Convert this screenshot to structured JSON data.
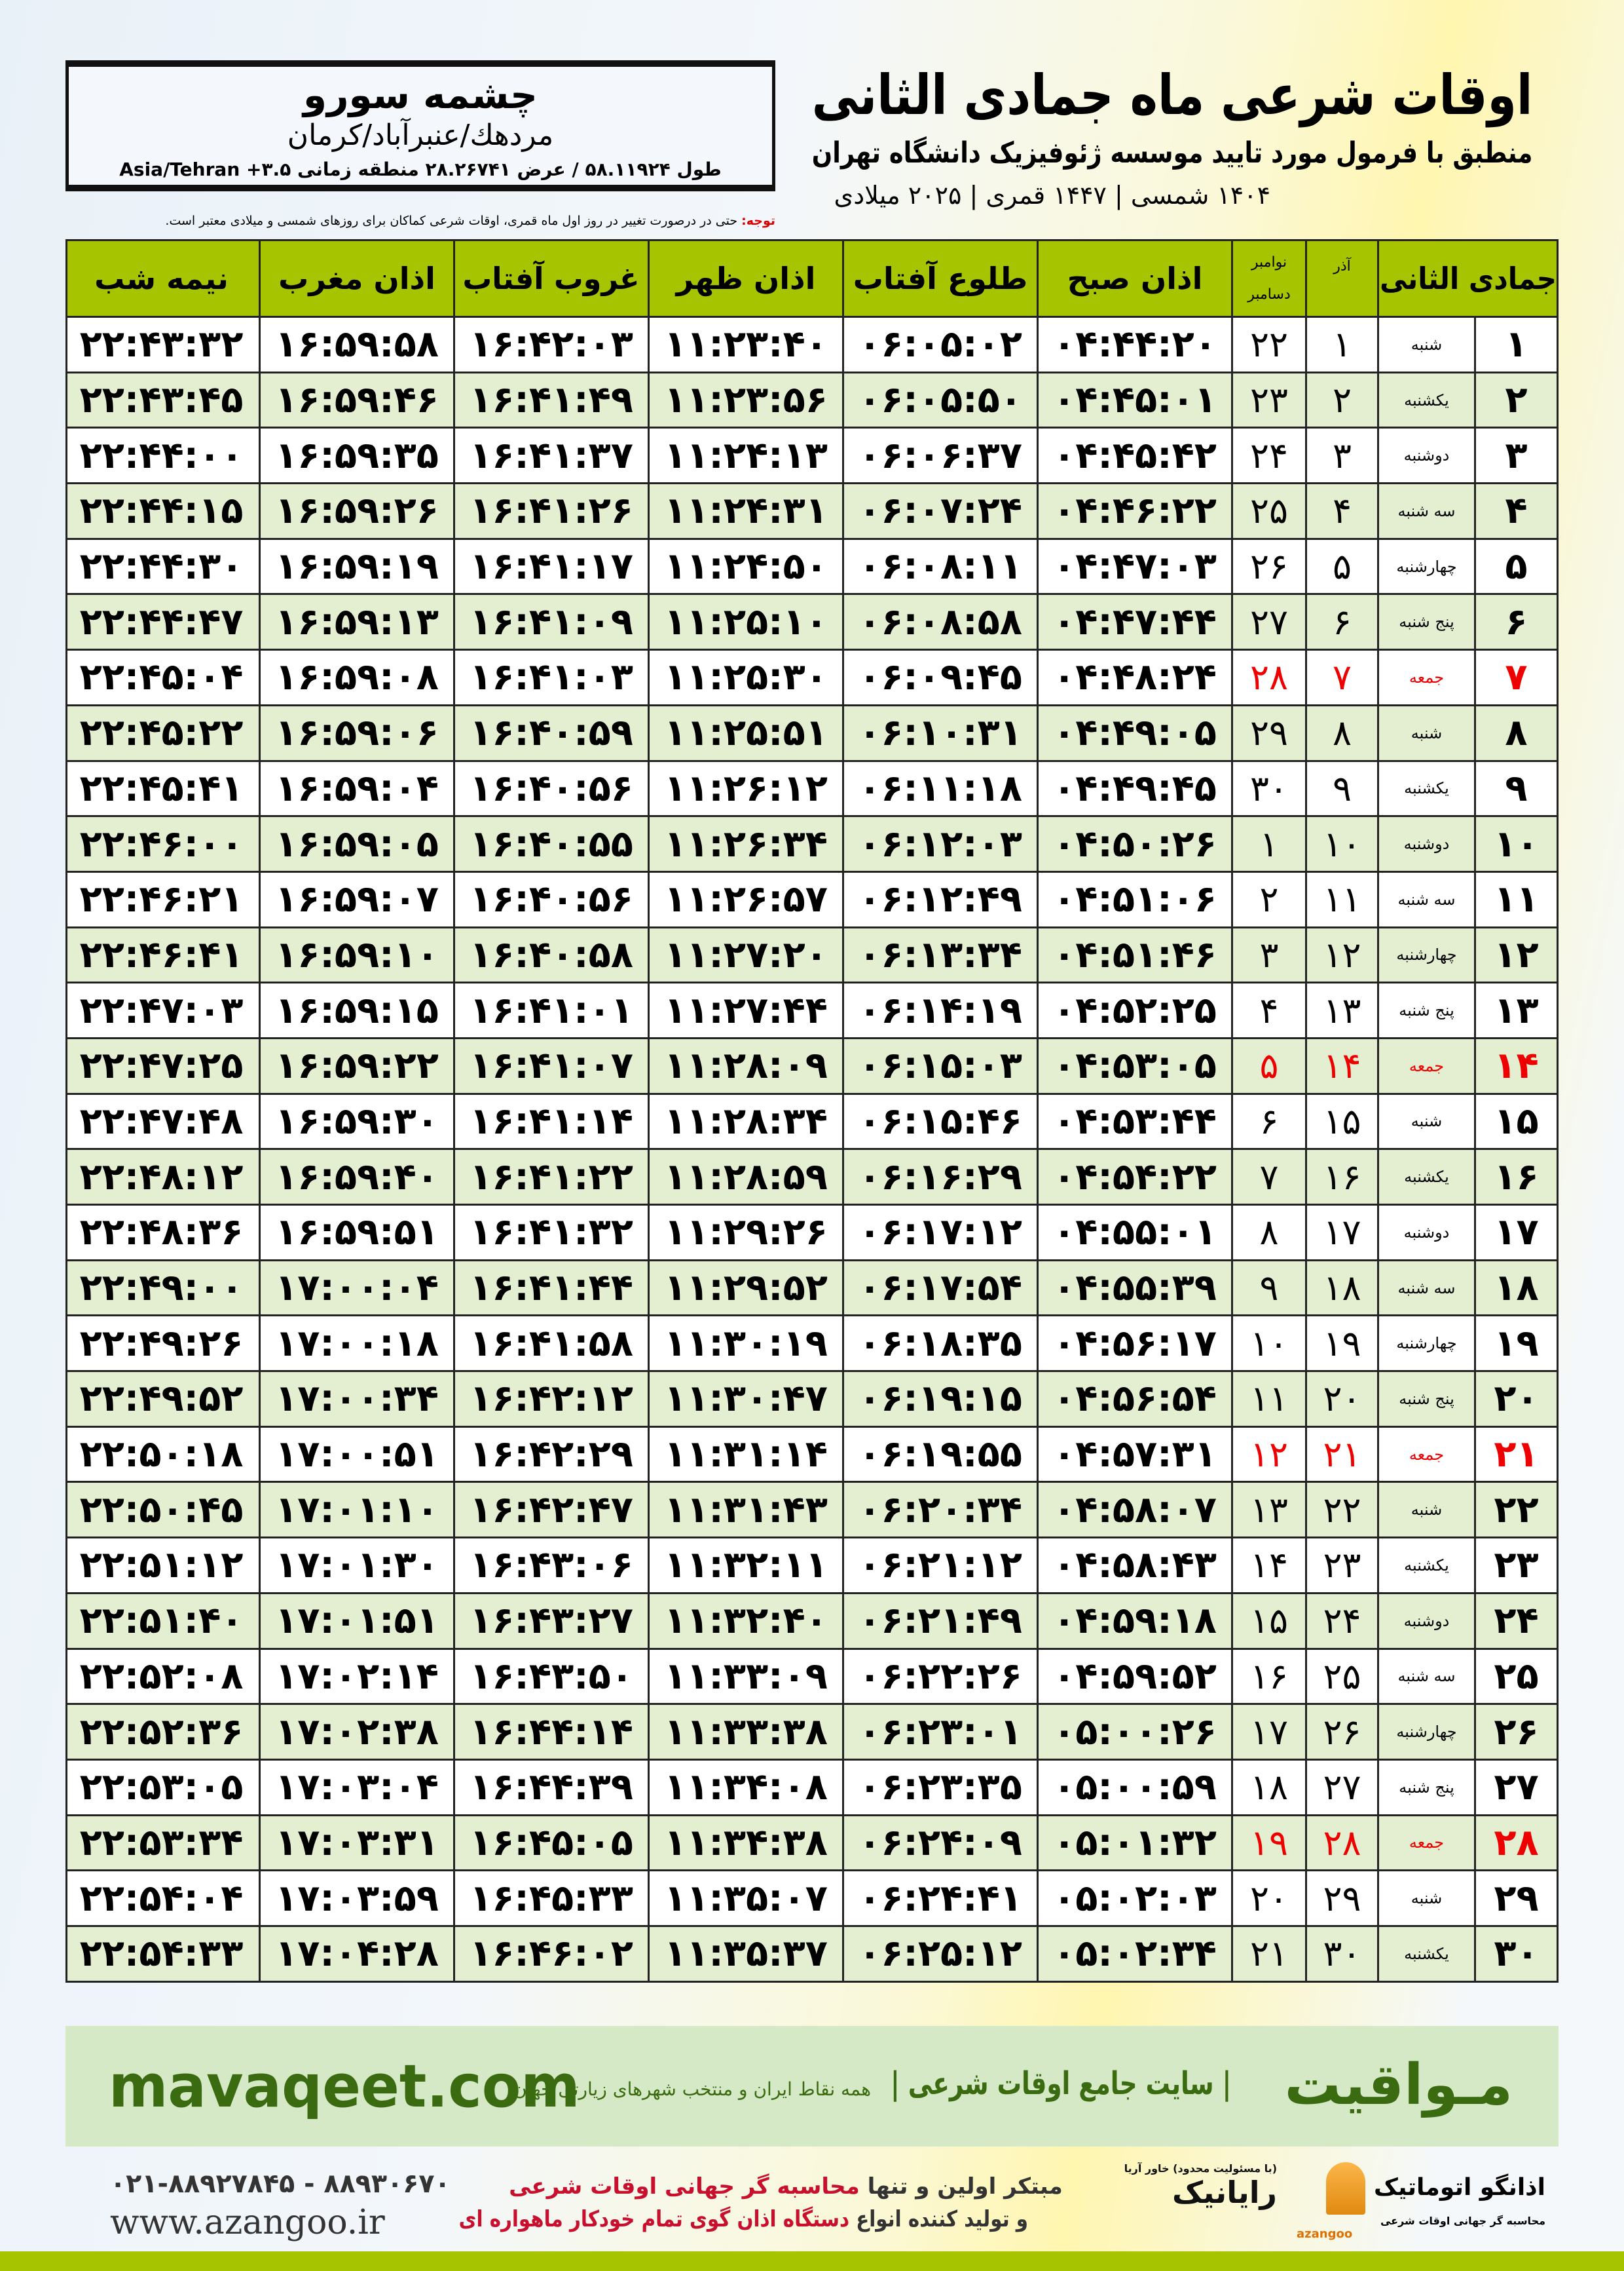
{
  "header": {
    "title": "اوقات شرعی ماه جمادی الثانی",
    "subtitle": "منطبق با فرمول مورد تایید موسسه ژئوفیزیک دانشگاه تهران",
    "years": "۱۴۰۴ شمسی | ۱۴۴۷ قمری | ۲۰۲۵ میلادی"
  },
  "location": {
    "city": "چشمه سورو",
    "path": "مردهك/عنبرآباد/کرمان",
    "coords": "طول ۵۸.۱۱۹۲۴ / عرض ۲۸.۲۶۷۴۱ منطقه زمانی ۳.۵+ Asia/Tehran"
  },
  "note": {
    "label": "توجه:",
    "text": " حتی در درصورت تغییر در روز اول ماه قمری، اوقات شرعی کماکان برای روزهای شمسی و میلادی معتبر است."
  },
  "columns": {
    "jumada": "جمادی الثانی",
    "azar": "آذر",
    "nov": "نوامبر",
    "dec": "دسامبر",
    "fajr": "اذان صبح",
    "sunrise": "طلوع آفتاب",
    "dhuhr": "اذان ظهر",
    "sunset": "غروب آفتاب",
    "maghrib": "اذان مغرب",
    "midnight": "نیمه شب"
  },
  "colors": {
    "header_green": "#a6c400",
    "holiday_red": "#e00000",
    "alt_row": "#e4efd2",
    "brand_green": "#3b6b10"
  },
  "rows": [
    {
      "d": "۱",
      "w": "شنبه",
      "a": "۱",
      "g": "۲۲",
      "t": [
        "۰۴:۴۴:۲۰",
        "۰۶:۰۵:۰۲",
        "۱۱:۲۳:۴۰",
        "۱۶:۴۲:۰۳",
        "۱۶:۵۹:۵۸",
        "۲۲:۴۳:۳۲"
      ]
    },
    {
      "d": "۲",
      "w": "یکشنبه",
      "a": "۲",
      "g": "۲۳",
      "t": [
        "۰۴:۴۵:۰۱",
        "۰۶:۰۵:۵۰",
        "۱۱:۲۳:۵۶",
        "۱۶:۴۱:۴۹",
        "۱۶:۵۹:۴۶",
        "۲۲:۴۳:۴۵"
      ]
    },
    {
      "d": "۳",
      "w": "دوشنبه",
      "a": "۳",
      "g": "۲۴",
      "t": [
        "۰۴:۴۵:۴۲",
        "۰۶:۰۶:۳۷",
        "۱۱:۲۴:۱۳",
        "۱۶:۴۱:۳۷",
        "۱۶:۵۹:۳۵",
        "۲۲:۴۴:۰۰"
      ]
    },
    {
      "d": "۴",
      "w": "سه شنبه",
      "a": "۴",
      "g": "۲۵",
      "t": [
        "۰۴:۴۶:۲۲",
        "۰۶:۰۷:۲۴",
        "۱۱:۲۴:۳۱",
        "۱۶:۴۱:۲۶",
        "۱۶:۵۹:۲۶",
        "۲۲:۴۴:۱۵"
      ]
    },
    {
      "d": "۵",
      "w": "چهارشنبه",
      "a": "۵",
      "g": "۲۶",
      "t": [
        "۰۴:۴۷:۰۳",
        "۰۶:۰۸:۱۱",
        "۱۱:۲۴:۵۰",
        "۱۶:۴۱:۱۷",
        "۱۶:۵۹:۱۹",
        "۲۲:۴۴:۳۰"
      ]
    },
    {
      "d": "۶",
      "w": "پنج شنبه",
      "a": "۶",
      "g": "۲۷",
      "t": [
        "۰۴:۴۷:۴۴",
        "۰۶:۰۸:۵۸",
        "۱۱:۲۵:۱۰",
        "۱۶:۴۱:۰۹",
        "۱۶:۵۹:۱۳",
        "۲۲:۴۴:۴۷"
      ]
    },
    {
      "d": "۷",
      "w": "جمعه",
      "a": "۷",
      "g": "۲۸",
      "h": true,
      "t": [
        "۰۴:۴۸:۲۴",
        "۰۶:۰۹:۴۵",
        "۱۱:۲۵:۳۰",
        "۱۶:۴۱:۰۳",
        "۱۶:۵۹:۰۸",
        "۲۲:۴۵:۰۴"
      ]
    },
    {
      "d": "۸",
      "w": "شنبه",
      "a": "۸",
      "g": "۲۹",
      "t": [
        "۰۴:۴۹:۰۵",
        "۰۶:۱۰:۳۱",
        "۱۱:۲۵:۵۱",
        "۱۶:۴۰:۵۹",
        "۱۶:۵۹:۰۶",
        "۲۲:۴۵:۲۲"
      ]
    },
    {
      "d": "۹",
      "w": "یکشنبه",
      "a": "۹",
      "g": "۳۰",
      "t": [
        "۰۴:۴۹:۴۵",
        "۰۶:۱۱:۱۸",
        "۱۱:۲۶:۱۲",
        "۱۶:۴۰:۵۶",
        "۱۶:۵۹:۰۴",
        "۲۲:۴۵:۴۱"
      ]
    },
    {
      "d": "۱۰",
      "w": "دوشنبه",
      "a": "۱۰",
      "g": "۱",
      "t": [
        "۰۴:۵۰:۲۶",
        "۰۶:۱۲:۰۳",
        "۱۱:۲۶:۳۴",
        "۱۶:۴۰:۵۵",
        "۱۶:۵۹:۰۵",
        "۲۲:۴۶:۰۰"
      ]
    },
    {
      "d": "۱۱",
      "w": "سه شنبه",
      "a": "۱۱",
      "g": "۲",
      "t": [
        "۰۴:۵۱:۰۶",
        "۰۶:۱۲:۴۹",
        "۱۱:۲۶:۵۷",
        "۱۶:۴۰:۵۶",
        "۱۶:۵۹:۰۷",
        "۲۲:۴۶:۲۱"
      ]
    },
    {
      "d": "۱۲",
      "w": "چهارشنبه",
      "a": "۱۲",
      "g": "۳",
      "t": [
        "۰۴:۵۱:۴۶",
        "۰۶:۱۳:۳۴",
        "۱۱:۲۷:۲۰",
        "۱۶:۴۰:۵۸",
        "۱۶:۵۹:۱۰",
        "۲۲:۴۶:۴۱"
      ]
    },
    {
      "d": "۱۳",
      "w": "پنج شنبه",
      "a": "۱۳",
      "g": "۴",
      "t": [
        "۰۴:۵۲:۲۵",
        "۰۶:۱۴:۱۹",
        "۱۱:۲۷:۴۴",
        "۱۶:۴۱:۰۱",
        "۱۶:۵۹:۱۵",
        "۲۲:۴۷:۰۳"
      ]
    },
    {
      "d": "۱۴",
      "w": "جمعه",
      "a": "۱۴",
      "g": "۵",
      "h": true,
      "t": [
        "۰۴:۵۳:۰۵",
        "۰۶:۱۵:۰۳",
        "۱۱:۲۸:۰۹",
        "۱۶:۴۱:۰۷",
        "۱۶:۵۹:۲۲",
        "۲۲:۴۷:۲۵"
      ]
    },
    {
      "d": "۱۵",
      "w": "شنبه",
      "a": "۱۵",
      "g": "۶",
      "t": [
        "۰۴:۵۳:۴۴",
        "۰۶:۱۵:۴۶",
        "۱۱:۲۸:۳۴",
        "۱۶:۴۱:۱۴",
        "۱۶:۵۹:۳۰",
        "۲۲:۴۷:۴۸"
      ]
    },
    {
      "d": "۱۶",
      "w": "یکشنبه",
      "a": "۱۶",
      "g": "۷",
      "t": [
        "۰۴:۵۴:۲۲",
        "۰۶:۱۶:۲۹",
        "۱۱:۲۸:۵۹",
        "۱۶:۴۱:۲۲",
        "۱۶:۵۹:۴۰",
        "۲۲:۴۸:۱۲"
      ]
    },
    {
      "d": "۱۷",
      "w": "دوشنبه",
      "a": "۱۷",
      "g": "۸",
      "t": [
        "۰۴:۵۵:۰۱",
        "۰۶:۱۷:۱۲",
        "۱۱:۲۹:۲۶",
        "۱۶:۴۱:۳۲",
        "۱۶:۵۹:۵۱",
        "۲۲:۴۸:۳۶"
      ]
    },
    {
      "d": "۱۸",
      "w": "سه شنبه",
      "a": "۱۸",
      "g": "۹",
      "t": [
        "۰۴:۵۵:۳۹",
        "۰۶:۱۷:۵۴",
        "۱۱:۲۹:۵۲",
        "۱۶:۴۱:۴۴",
        "۱۷:۰۰:۰۴",
        "۲۲:۴۹:۰۰"
      ]
    },
    {
      "d": "۱۹",
      "w": "چهارشنبه",
      "a": "۱۹",
      "g": "۱۰",
      "t": [
        "۰۴:۵۶:۱۷",
        "۰۶:۱۸:۳۵",
        "۱۱:۳۰:۱۹",
        "۱۶:۴۱:۵۸",
        "۱۷:۰۰:۱۸",
        "۲۲:۴۹:۲۶"
      ]
    },
    {
      "d": "۲۰",
      "w": "پنج شنبه",
      "a": "۲۰",
      "g": "۱۱",
      "t": [
        "۰۴:۵۶:۵۴",
        "۰۶:۱۹:۱۵",
        "۱۱:۳۰:۴۷",
        "۱۶:۴۲:۱۲",
        "۱۷:۰۰:۳۴",
        "۲۲:۴۹:۵۲"
      ]
    },
    {
      "d": "۲۱",
      "w": "جمعه",
      "a": "۲۱",
      "g": "۱۲",
      "h": true,
      "t": [
        "۰۴:۵۷:۳۱",
        "۰۶:۱۹:۵۵",
        "۱۱:۳۱:۱۴",
        "۱۶:۴۲:۲۹",
        "۱۷:۰۰:۵۱",
        "۲۲:۵۰:۱۸"
      ]
    },
    {
      "d": "۲۲",
      "w": "شنبه",
      "a": "۲۲",
      "g": "۱۳",
      "t": [
        "۰۴:۵۸:۰۷",
        "۰۶:۲۰:۳۴",
        "۱۱:۳۱:۴۳",
        "۱۶:۴۲:۴۷",
        "۱۷:۰۱:۱۰",
        "۲۲:۵۰:۴۵"
      ]
    },
    {
      "d": "۲۳",
      "w": "یکشنبه",
      "a": "۲۳",
      "g": "۱۴",
      "t": [
        "۰۴:۵۸:۴۳",
        "۰۶:۲۱:۱۲",
        "۱۱:۳۲:۱۱",
        "۱۶:۴۳:۰۶",
        "۱۷:۰۱:۳۰",
        "۲۲:۵۱:۱۲"
      ]
    },
    {
      "d": "۲۴",
      "w": "دوشنبه",
      "a": "۲۴",
      "g": "۱۵",
      "t": [
        "۰۴:۵۹:۱۸",
        "۰۶:۲۱:۴۹",
        "۱۱:۳۲:۴۰",
        "۱۶:۴۳:۲۷",
        "۱۷:۰۱:۵۱",
        "۲۲:۵۱:۴۰"
      ]
    },
    {
      "d": "۲۵",
      "w": "سه شنبه",
      "a": "۲۵",
      "g": "۱۶",
      "t": [
        "۰۴:۵۹:۵۲",
        "۰۶:۲۲:۲۶",
        "۱۱:۳۳:۰۹",
        "۱۶:۴۳:۵۰",
        "۱۷:۰۲:۱۴",
        "۲۲:۵۲:۰۸"
      ]
    },
    {
      "d": "۲۶",
      "w": "چهارشنبه",
      "a": "۲۶",
      "g": "۱۷",
      "t": [
        "۰۵:۰۰:۲۶",
        "۰۶:۲۳:۰۱",
        "۱۱:۳۳:۳۸",
        "۱۶:۴۴:۱۴",
        "۱۷:۰۲:۳۸",
        "۲۲:۵۲:۳۶"
      ]
    },
    {
      "d": "۲۷",
      "w": "پنج شنبه",
      "a": "۲۷",
      "g": "۱۸",
      "t": [
        "۰۵:۰۰:۵۹",
        "۰۶:۲۳:۳۵",
        "۱۱:۳۴:۰۸",
        "۱۶:۴۴:۳۹",
        "۱۷:۰۳:۰۴",
        "۲۲:۵۳:۰۵"
      ]
    },
    {
      "d": "۲۸",
      "w": "جمعه",
      "a": "۲۸",
      "g": "۱۹",
      "h": true,
      "t": [
        "۰۵:۰۱:۳۲",
        "۰۶:۲۴:۰۹",
        "۱۱:۳۴:۳۸",
        "۱۶:۴۵:۰۵",
        "۱۷:۰۳:۳۱",
        "۲۲:۵۳:۳۴"
      ]
    },
    {
      "d": "۲۹",
      "w": "شنبه",
      "a": "۲۹",
      "g": "۲۰",
      "t": [
        "۰۵:۰۲:۰۳",
        "۰۶:۲۴:۴۱",
        "۱۱:۳۵:۰۷",
        "۱۶:۴۵:۳۳",
        "۱۷:۰۳:۵۹",
        "۲۲:۵۴:۰۴"
      ]
    },
    {
      "d": "۳۰",
      "w": "یکشنبه",
      "a": "۳۰",
      "g": "۲۱",
      "t": [
        "۰۵:۰۲:۳۴",
        "۰۶:۲۵:۱۲",
        "۱۱:۳۵:۳۷",
        "۱۶:۴۶:۰۲",
        "۱۷:۰۴:۲۸",
        "۲۲:۵۴:۳۳"
      ]
    }
  ],
  "banner": {
    "brand": "مـواقیت",
    "tagline": "| سایت جامع اوقات شرعی |",
    "tagline2": "همه نقاط ایران و منتخب شهرهای زیارتی جهان",
    "site": "mavaqeet.com"
  },
  "footer": {
    "phones": "۰۲۱-۸۸۹۲۷۸۴۵ - ۸۸۹۳۰۶۷۰",
    "web": "www.azangoo.ir",
    "promo1a": "مبتکر اولین و تنها ",
    "promo1b": "محاسبه گر جهانی اوقات شرعی",
    "promo2a": "و تولید کننده انواع ",
    "promo2b": "دستگاه اذان گوی تمام خودکار ماهواره ای",
    "logo1": "رایانیک",
    "logo1_sub": "(با مسئولیت محدود) خاور آریا",
    "logo2": "اذانگو اتوماتیک",
    "logo2_sub": "محاسبه گر جهانی اوقات شرعی",
    "logo2_latin": "azangoo"
  }
}
